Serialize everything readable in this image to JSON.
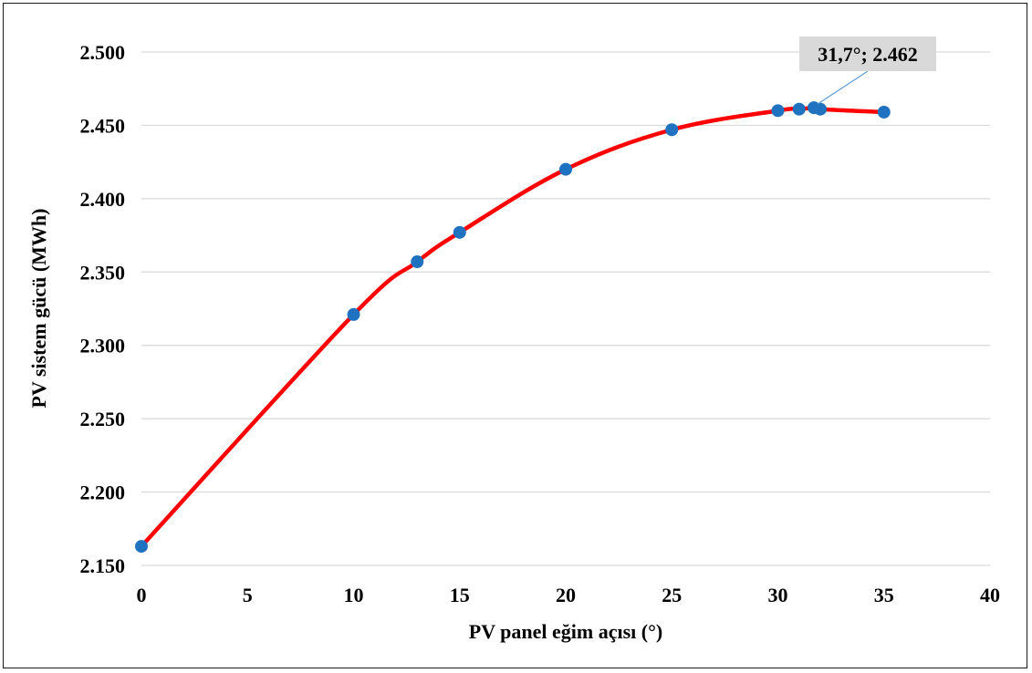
{
  "chart_data": {
    "type": "line",
    "xlabel": "PV panel eğim açısı (°)",
    "ylabel": "PV sistem gücü (MWh)",
    "xlim": [
      0,
      40
    ],
    "ylim": [
      2.15,
      2.5
    ],
    "x_ticks": [
      0,
      5,
      10,
      15,
      20,
      25,
      30,
      35,
      40
    ],
    "y_ticks": [
      2.15,
      2.2,
      2.25,
      2.3,
      2.35,
      2.4,
      2.45,
      2.5
    ],
    "x_tick_labels": [
      "0",
      "5",
      "10",
      "15",
      "20",
      "25",
      "30",
      "35",
      "40"
    ],
    "y_tick_labels": [
      "2.150",
      "2.200",
      "2.250",
      "2.300",
      "2.350",
      "2.400",
      "2.450",
      "2.500"
    ],
    "grid": "horizontal",
    "series": [
      {
        "x": [
          0,
          10,
          13,
          15,
          20,
          25,
          30,
          31,
          31.7,
          32,
          35
        ],
        "y": [
          2.163,
          2.321,
          2.357,
          2.377,
          2.42,
          2.447,
          2.46,
          2.461,
          2.462,
          2.461,
          2.459
        ],
        "line_color": "#ff0000",
        "marker_color": "#1f72c0"
      }
    ],
    "annotation": {
      "x": 31.7,
      "y": 2.462,
      "text": "31,7°; 2.462",
      "box_color": "#d9d9d9",
      "leader_color": "#5b9bd5"
    }
  }
}
